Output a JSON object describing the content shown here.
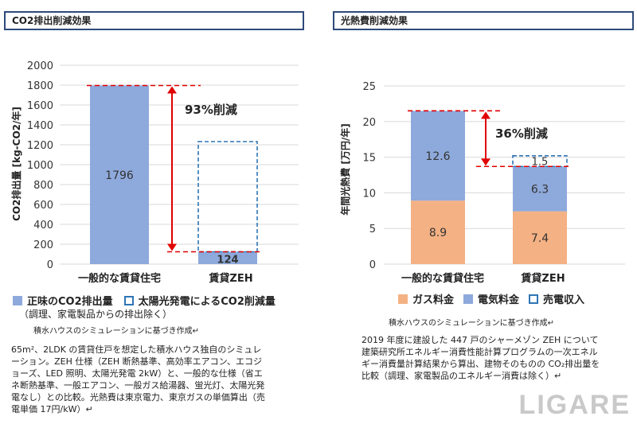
{
  "chart_data": [
    {
      "type": "bar",
      "title": "CO2排出削減効果",
      "ylabel": "CO2排出量 [kg-CO2/年]",
      "ylim": [
        0,
        2000
      ],
      "yticks": [
        0,
        200,
        400,
        600,
        800,
        1000,
        1200,
        1400,
        1600,
        1800,
        2000
      ],
      "categories": [
        "一般的な賃貸住宅",
        "賃貸ZEH"
      ],
      "series": [
        {
          "name": "正味のCO2排出量",
          "color": "#8ea9db",
          "values": [
            1796,
            124
          ]
        },
        {
          "name": "太陽光発電によるCO2削減量",
          "color": "#ffffff",
          "outline": "#2e75b6",
          "values": [
            0,
            1108
          ]
        }
      ],
      "value_labels": [
        "1796",
        "124"
      ],
      "annotation": "93%削減",
      "legend_note": "（調理、家電製品からの排出除く）",
      "source": "積水ハウスのシミュレーションに基づき作成↵",
      "description": "65m²、2LDK の賃貸住戸を想定した積水ハウス独自のシミュレーション。ZEH 仕様（ZEH 断熱基準、高効率エアコン、エコジョーズ、LED 照明、太陽光発電 2kW）と、一般的な仕様（省エネ断熱基準、一般エアコン、一般ガス給湯器、蛍光灯、太陽光発電なし）との比較。光熱費は東京電力、東京ガスの単価算出（売電単価 17円/kW）↵"
    },
    {
      "type": "bar",
      "title": "光熱費削減効果",
      "ylabel": "年間光熱費 [万円/年]",
      "ylim": [
        0,
        25
      ],
      "yticks": [
        0,
        5,
        10,
        15,
        20,
        25
      ],
      "categories": [
        "一般的な賃貸住宅",
        "賃貸ZEH"
      ],
      "series": [
        {
          "name": "ガス料金",
          "color": "#f4b183",
          "values": [
            8.9,
            7.4
          ]
        },
        {
          "name": "電気料金",
          "color": "#8ea9db",
          "values": [
            12.6,
            6.3
          ]
        },
        {
          "name": "売電収入",
          "color": "#ffffff",
          "outline": "#2e75b6",
          "values": [
            0,
            1.5
          ]
        }
      ],
      "annotation": "36%削減",
      "source": "積水ハウスのシミュレーションに基づき作成↵",
      "description": "2019 年度に建設した 447 戸のシャーメゾン ZEH について建築研究所エネルギー消費性能計算プログラムの一次エネルギー消費量計算結果から算出、建物そのものの CO₂排出量を比較（調理、家電製品のエネルギー消費は除く）↵"
    }
  ],
  "watermark": "LIGARE"
}
